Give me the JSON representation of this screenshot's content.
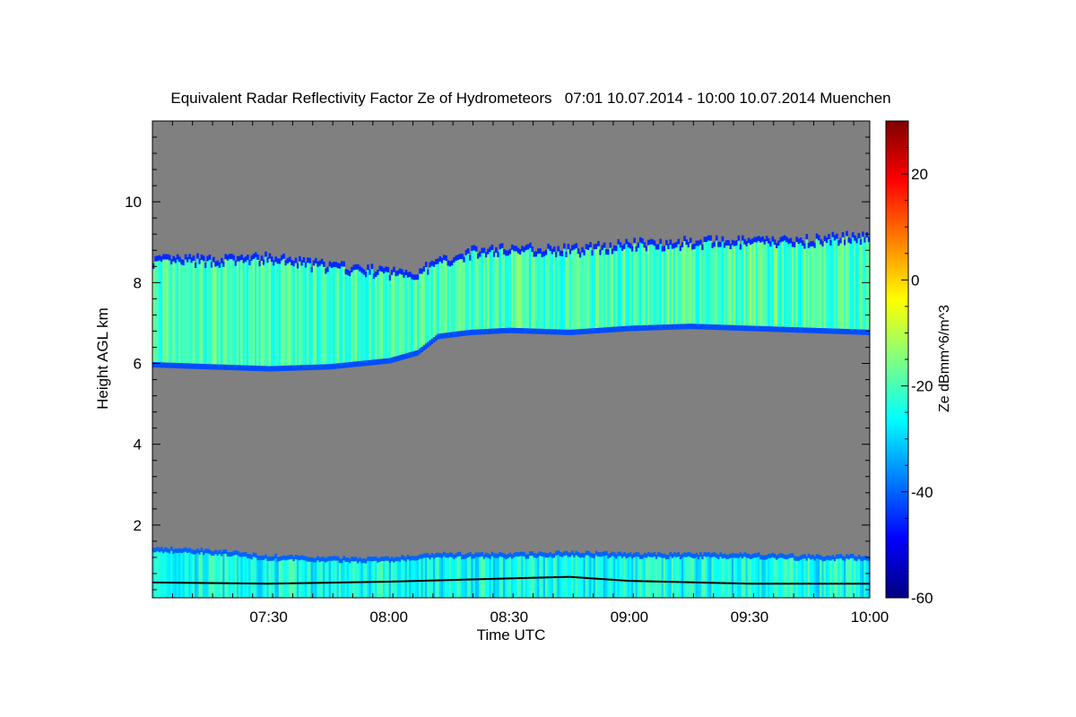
{
  "chart_data": {
    "type": "heatmap",
    "title": "Equivalent Radar Reflectivity Factor Ze of Hydrometeors   07:01 10.07.2014 - 10:00 10.07.2014 Muenchen",
    "xlabel": "Time UTC",
    "ylabel": "Height AGL km",
    "colorbar_label": "Ze dBmm^6/m^3",
    "x_range": [
      "07:01",
      "10:00"
    ],
    "x_ticks": [
      "07:30",
      "08:00",
      "08:30",
      "09:00",
      "09:30",
      "10:00"
    ],
    "ylim": [
      0.2,
      12
    ],
    "y_ticks": [
      2,
      4,
      6,
      8,
      10
    ],
    "colorbar_range": [
      -60,
      30
    ],
    "colorbar_ticks": [
      -60,
      -40,
      -20,
      0,
      20
    ],
    "no_signal_color": "#808080",
    "colormap": [
      "#00007f",
      "#0000ff",
      "#0080ff",
      "#00ffff",
      "#80ff80",
      "#ffff00",
      "#ff8000",
      "#ff0000",
      "#7f0000"
    ],
    "upper_cloud_layer": {
      "time": [
        "07:01",
        "07:15",
        "07:30",
        "07:45",
        "08:00",
        "08:07",
        "08:12",
        "08:20",
        "08:30",
        "08:45",
        "09:00",
        "09:15",
        "09:30",
        "09:45",
        "10:00"
      ],
      "base_km": [
        5.9,
        5.85,
        5.8,
        5.85,
        6.0,
        6.2,
        6.6,
        6.7,
        6.75,
        6.7,
        6.8,
        6.85,
        6.8,
        6.75,
        6.7
      ],
      "top_km": [
        8.6,
        8.6,
        8.65,
        8.45,
        8.3,
        8.3,
        8.55,
        8.8,
        8.9,
        8.85,
        9.0,
        9.05,
        9.05,
        9.1,
        9.2
      ],
      "typical_ze_dbz": -20
    },
    "boundary_layer": {
      "base_km": 0.2,
      "top_km": [
        1.45,
        1.4,
        1.25,
        1.2,
        1.2,
        1.25,
        1.3,
        1.3,
        1.3,
        1.35,
        1.3,
        1.3,
        1.3,
        1.25,
        1.25
      ],
      "typical_ze_dbz": -25
    },
    "black_line_km": {
      "time": [
        "07:01",
        "07:30",
        "08:00",
        "08:30",
        "08:45",
        "09:00",
        "09:30",
        "10:00"
      ],
      "height": [
        0.58,
        0.55,
        0.6,
        0.68,
        0.72,
        0.62,
        0.55,
        0.55
      ]
    }
  }
}
